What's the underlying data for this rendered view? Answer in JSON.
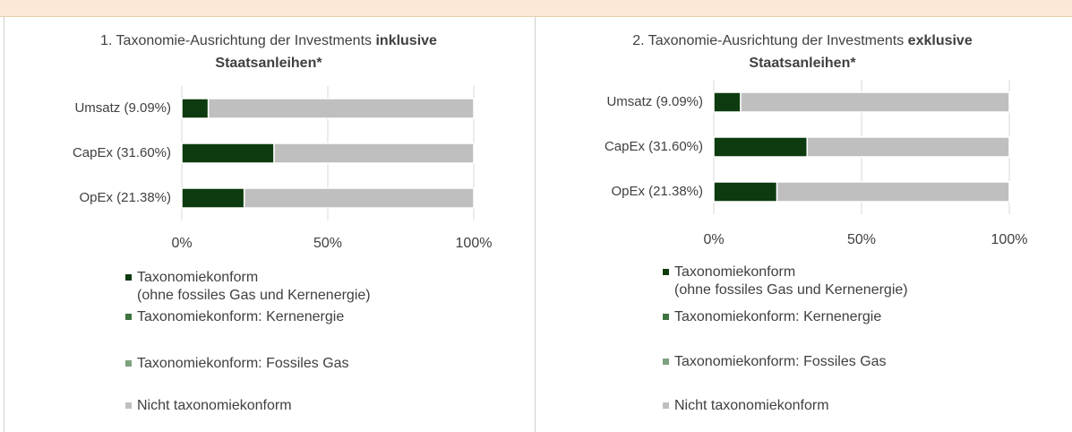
{
  "chart_data": [
    {
      "type": "bar",
      "orientation": "horizontal",
      "stacked": true,
      "title": {
        "text": "1. Taxonomie-Ausrichtung der Investments",
        "bold": "inklusive Staatsanleihen*"
      },
      "categories": [
        "Umsatz (9.09%)",
        "CapEx (31.60%)",
        "OpEx (21.38%)"
      ],
      "series": [
        {
          "name": "Taxonomiekonform\n(ohne fossiles Gas und Kernenergie)",
          "color": "#0d3b0f",
          "values": [
            9.09,
            31.6,
            21.38
          ]
        },
        {
          "name": "Taxonomiekonform: Kernenergie",
          "color": "#3f7340",
          "values": [
            0,
            0,
            0
          ]
        },
        {
          "name": "Taxonomiekonform: Fossiles Gas",
          "color": "#7fa17f",
          "values": [
            0,
            0,
            0
          ]
        },
        {
          "name": "Nicht taxonomiekonform",
          "color": "#bfbfbf",
          "values": [
            90.91,
            68.4,
            78.62
          ]
        }
      ],
      "xlim": [
        0,
        100
      ],
      "xticks": [
        {
          "value": 0,
          "label": "0%"
        },
        {
          "value": 50,
          "label": "50%"
        },
        {
          "value": 100,
          "label": "100%"
        }
      ],
      "grid": true
    },
    {
      "type": "bar",
      "orientation": "horizontal",
      "stacked": true,
      "title": {
        "text": "2. Taxonomie-Ausrichtung der Investments",
        "bold": "exklusive Staatsanleihen*"
      },
      "categories": [
        "Umsatz (9.09%)",
        "CapEx (31.60%)",
        "OpEx (21.38%)"
      ],
      "series": [
        {
          "name": "Taxonomiekonform\n(ohne fossiles Gas und Kernenergie)",
          "color": "#0d3b0f",
          "values": [
            9.09,
            31.6,
            21.38
          ]
        },
        {
          "name": "Taxonomiekonform: Kernenergie",
          "color": "#3f7340",
          "values": [
            0,
            0,
            0
          ]
        },
        {
          "name": "Taxonomiekonform: Fossiles Gas",
          "color": "#7fa17f",
          "values": [
            0,
            0,
            0
          ]
        },
        {
          "name": "Nicht taxonomiekonform",
          "color": "#bfbfbf",
          "values": [
            90.91,
            68.4,
            78.62
          ]
        }
      ],
      "xlim": [
        0,
        100
      ],
      "xticks": [
        {
          "value": 0,
          "label": "0%"
        },
        {
          "value": 50,
          "label": "50%"
        },
        {
          "value": 100,
          "label": "100%"
        }
      ],
      "grid": true
    }
  ]
}
